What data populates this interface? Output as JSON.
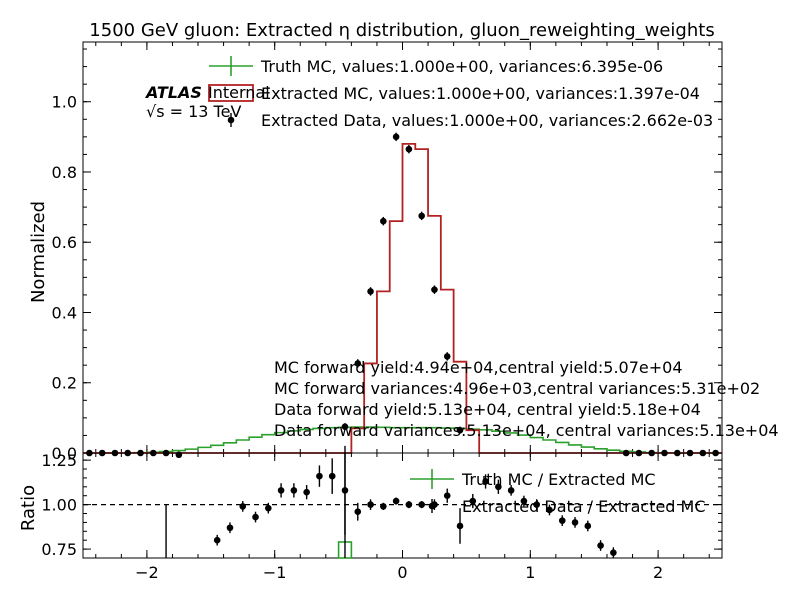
{
  "chart_data": {
    "type": "line",
    "title": "1500 GeV gluon: Extracted η distribution, gluon_reweighting_weights",
    "atlas": {
      "brand": "ATLAS",
      "status": "Internal",
      "energy": "√s = 13 TeV"
    },
    "xlim": [
      -2.5,
      2.5
    ],
    "x_ticks": [
      "−2",
      "−1",
      "0",
      "1",
      "2"
    ],
    "x_tick_values": [
      -2,
      -1,
      0,
      1,
      2
    ],
    "top": {
      "ylabel": "Normalized",
      "ylim": [
        0,
        1.17
      ],
      "y_ticks": [
        "0.0",
        "0.2",
        "0.4",
        "0.6",
        "0.8",
        "1.0"
      ],
      "y_tick_values": [
        0,
        0.2,
        0.4,
        0.6,
        0.8,
        1.0
      ],
      "legend": [
        {
          "label": "Truth MC, values:1.000e+00, variances:6.395e-06",
          "color": "#2ca02c",
          "style": "errorbar"
        },
        {
          "label": "Extracted MC, values:1.000e+00, variances:1.397e-04",
          "color": "#b22222",
          "style": "step"
        },
        {
          "label": "Extracted Data, values:1.000e+00, variances:2.662e-03",
          "color": "#000000",
          "style": "point"
        }
      ],
      "annotations": [
        "MC forward yield:4.94e+04,central yield:5.07e+04",
        "MC forward variances:4.96e+03,central variances:5.31e+02",
        "Data forward yield:5.13e+04, central yield:5.18e+04",
        "Data forward variances:5.13e+04, central variances:5.13e+04"
      ],
      "bin_edges": [
        -2.5,
        -2.4,
        -2.3,
        -2.2,
        -2.1,
        -2.0,
        -1.9,
        -1.8,
        -1.7,
        -1.6,
        -1.5,
        -1.4,
        -1.3,
        -1.2,
        -1.1,
        -1.0,
        -0.9,
        -0.8,
        -0.7,
        -0.6,
        -0.5,
        -0.4,
        -0.3,
        -0.2,
        -0.1,
        0.0,
        0.1,
        0.2,
        0.3,
        0.4,
        0.5,
        0.6,
        0.7,
        0.8,
        0.9,
        1.0,
        1.1,
        1.2,
        1.3,
        1.4,
        1.5,
        1.6,
        1.7,
        1.8,
        1.9,
        2.0,
        2.1,
        2.2,
        2.3,
        2.4,
        2.5
      ],
      "truth_mc": [
        0.0,
        0.0,
        0.0,
        0.0,
        0.001,
        0.002,
        0.004,
        0.007,
        0.011,
        0.016,
        0.022,
        0.029,
        0.037,
        0.045,
        0.052,
        0.058,
        0.063,
        0.067,
        0.07,
        0.072,
        0.073,
        0.074,
        0.074,
        0.073,
        0.072,
        0.072,
        0.072,
        0.072,
        0.071,
        0.07,
        0.068,
        0.066,
        0.062,
        0.057,
        0.051,
        0.044,
        0.037,
        0.03,
        0.023,
        0.017,
        0.012,
        0.008,
        0.005,
        0.003,
        0.001,
        0.0,
        0.0,
        0.0,
        0.0,
        0.0
      ],
      "extracted_mc": [
        0,
        0,
        0,
        0,
        0,
        0,
        0,
        0,
        0,
        0,
        0,
        0,
        0,
        0,
        0,
        0,
        0,
        0,
        0,
        0,
        0,
        0.07,
        0.255,
        0.46,
        0.66,
        0.88,
        0.865,
        0.675,
        0.465,
        0.26,
        0.065,
        0,
        0,
        0,
        0,
        0,
        0,
        0,
        0,
        0,
        0,
        0,
        0,
        0,
        0,
        0,
        0,
        0,
        0,
        0
      ],
      "data_points": [
        {
          "x": -2.45,
          "y": 0.0
        },
        {
          "x": -2.35,
          "y": 0.0
        },
        {
          "x": -2.25,
          "y": 0.0
        },
        {
          "x": -2.15,
          "y": 0.0
        },
        {
          "x": -2.05,
          "y": 0.0
        },
        {
          "x": -1.95,
          "y": 0.0
        },
        {
          "x": -1.85,
          "y": 0.0
        },
        {
          "x": -1.75,
          "y": -0.005
        },
        {
          "x": -0.45,
          "y": 0.075,
          "err": 0.01
        },
        {
          "x": -0.35,
          "y": 0.255,
          "err": 0.012
        },
        {
          "x": -0.25,
          "y": 0.46,
          "err": 0.012
        },
        {
          "x": -0.15,
          "y": 0.66,
          "err": 0.012
        },
        {
          "x": -0.05,
          "y": 0.9,
          "err": 0.012
        },
        {
          "x": 0.05,
          "y": 0.865,
          "err": 0.012
        },
        {
          "x": 0.15,
          "y": 0.675,
          "err": 0.012
        },
        {
          "x": 0.25,
          "y": 0.465,
          "err": 0.012
        },
        {
          "x": 0.35,
          "y": 0.275,
          "err": 0.012
        },
        {
          "x": 0.45,
          "y": 0.065,
          "err": 0.01
        },
        {
          "x": 1.75,
          "y": 0.0
        },
        {
          "x": 1.85,
          "y": 0.0
        },
        {
          "x": 1.95,
          "y": 0.0
        },
        {
          "x": 2.05,
          "y": 0.0
        },
        {
          "x": 2.15,
          "y": 0.0
        },
        {
          "x": 2.25,
          "y": 0.0
        },
        {
          "x": 2.35,
          "y": 0.0
        },
        {
          "x": 2.45,
          "y": 0.0
        }
      ]
    },
    "ratio": {
      "ylabel": "Ratio",
      "ylim": [
        0.7,
        1.29
      ],
      "y_ticks": [
        "0.75",
        "1.00",
        "1.25"
      ],
      "y_tick_values": [
        0.75,
        1.0,
        1.25
      ],
      "reference_line": 1.0,
      "legend": [
        {
          "label": "Truth MC / Extracted MC",
          "color": "#2ca02c",
          "style": "errorbar"
        },
        {
          "label": "Extracted Data / Extracted MC",
          "color": "#000000",
          "style": "point"
        }
      ],
      "truth_ratio_box": {
        "x0": -0.5,
        "x1": -0.4,
        "y0": 0.7,
        "y1": 0.79
      },
      "vertical_bars": [
        {
          "x": -1.85,
          "y0": 0.7,
          "y1": 1.0
        },
        {
          "x": -0.45,
          "y0": 0.7,
          "y1": 1.29
        }
      ],
      "data_points": [
        {
          "x": -1.45,
          "y": 0.8,
          "err": 0.03
        },
        {
          "x": -1.35,
          "y": 0.87,
          "err": 0.03
        },
        {
          "x": -1.25,
          "y": 0.99,
          "err": 0.03
        },
        {
          "x": -1.15,
          "y": 0.93,
          "err": 0.03
        },
        {
          "x": -1.05,
          "y": 0.98,
          "err": 0.03
        },
        {
          "x": -0.95,
          "y": 1.08,
          "err": 0.04
        },
        {
          "x": -0.85,
          "y": 1.08,
          "err": 0.04
        },
        {
          "x": -0.75,
          "y": 1.07,
          "err": 0.04
        },
        {
          "x": -0.65,
          "y": 1.16,
          "err": 0.06
        },
        {
          "x": -0.55,
          "y": 1.16,
          "err": 0.1
        },
        {
          "x": -0.45,
          "y": 1.08,
          "err": 0.25
        },
        {
          "x": -0.35,
          "y": 0.96,
          "err": 0.05
        },
        {
          "x": -0.25,
          "y": 1.0,
          "err": 0.03
        },
        {
          "x": -0.15,
          "y": 0.99,
          "err": 0.02
        },
        {
          "x": -0.05,
          "y": 1.02,
          "err": 0.02
        },
        {
          "x": 0.05,
          "y": 1.0,
          "err": 0.02
        },
        {
          "x": 0.15,
          "y": 1.0,
          "err": 0.02
        },
        {
          "x": 0.25,
          "y": 1.0,
          "err": 0.03
        },
        {
          "x": 0.35,
          "y": 1.05,
          "err": 0.04
        },
        {
          "x": 0.45,
          "y": 0.88,
          "err": 0.1
        },
        {
          "x": 0.55,
          "y": 1.02,
          "err": 0.04
        },
        {
          "x": 0.65,
          "y": 1.13,
          "err": 0.04
        },
        {
          "x": 0.75,
          "y": 1.1,
          "err": 0.04
        },
        {
          "x": 0.85,
          "y": 1.08,
          "err": 0.03
        },
        {
          "x": 0.95,
          "y": 1.02,
          "err": 0.03
        },
        {
          "x": 1.05,
          "y": 1.0,
          "err": 0.03
        },
        {
          "x": 1.15,
          "y": 0.97,
          "err": 0.03
        },
        {
          "x": 1.25,
          "y": 0.91,
          "err": 0.03
        },
        {
          "x": 1.35,
          "y": 0.9,
          "err": 0.03
        },
        {
          "x": 1.45,
          "y": 0.88,
          "err": 0.03
        },
        {
          "x": 1.55,
          "y": 0.77,
          "err": 0.03
        },
        {
          "x": 1.65,
          "y": 0.73,
          "err": 0.03
        }
      ]
    }
  }
}
